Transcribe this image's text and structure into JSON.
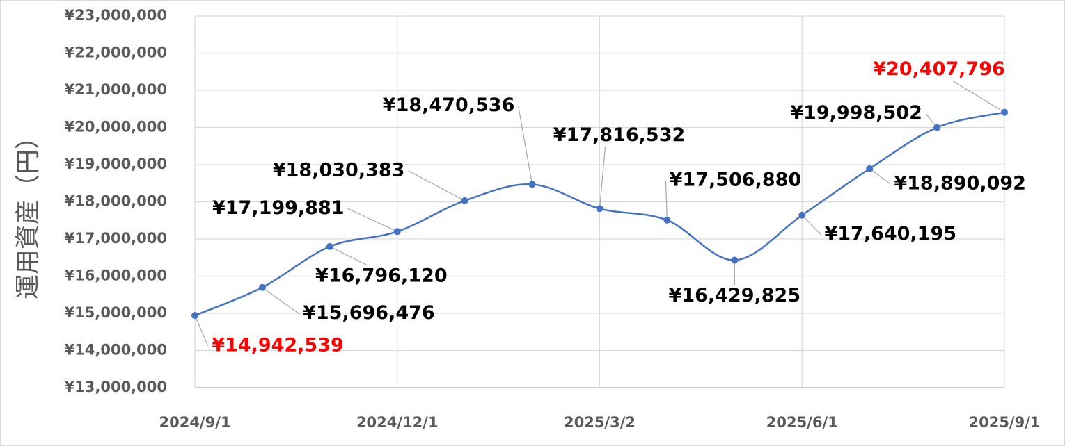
{
  "chart_data": {
    "type": "line",
    "y_label": "運用資産（円）",
    "categories": [
      "2024/9/1",
      null,
      null,
      "2024/12/1",
      null,
      null,
      "2025/3/2",
      null,
      null,
      "2025/6/1",
      null,
      null,
      "2025/9/1"
    ],
    "series": [
      {
        "color": "#4472c4",
        "values": [
          14942539,
          15696476,
          16796120,
          17199881,
          18030383,
          18470536,
          17816532,
          17506880,
          16429825,
          17640195,
          18890092,
          19998502,
          20407796
        ],
        "value_labels": [
          "¥14,942,539",
          "¥15,696,476",
          "¥16,796,120",
          "¥17,199,881",
          "¥18,030,383",
          "¥18,470,536",
          "¥17,816,532",
          "¥17,506,880",
          "¥16,429,825",
          "¥17,640,195",
          "¥18,890,092",
          "¥19,998,502",
          "¥20,407,796"
        ],
        "value_label_colors": [
          "#ff0000",
          "#000000",
          "#000000",
          "#000000",
          "#000000",
          "#000000",
          "#000000",
          "#000000",
          "#000000",
          "#000000",
          "#000000",
          "#000000",
          "#ff0000"
        ]
      }
    ],
    "ylim": [
      13000000,
      23000000
    ],
    "yticks": [
      {
        "value": 13000000,
        "label": "¥13,000,000"
      },
      {
        "value": 14000000,
        "label": "¥14,000,000"
      },
      {
        "value": 15000000,
        "label": "¥15,000,000"
      },
      {
        "value": 16000000,
        "label": "¥16,000,000"
      },
      {
        "value": 17000000,
        "label": "¥17,000,000"
      },
      {
        "value": 18000000,
        "label": "¥18,000,000"
      },
      {
        "value": 19000000,
        "label": "¥19,000,000"
      },
      {
        "value": 20000000,
        "label": "¥20,000,000"
      },
      {
        "value": 21000000,
        "label": "¥21,000,000"
      },
      {
        "value": 22000000,
        "label": "¥22,000,000"
      },
      {
        "value": 23000000,
        "label": "¥23,000,000"
      }
    ],
    "grid": true,
    "smooth": true
  }
}
